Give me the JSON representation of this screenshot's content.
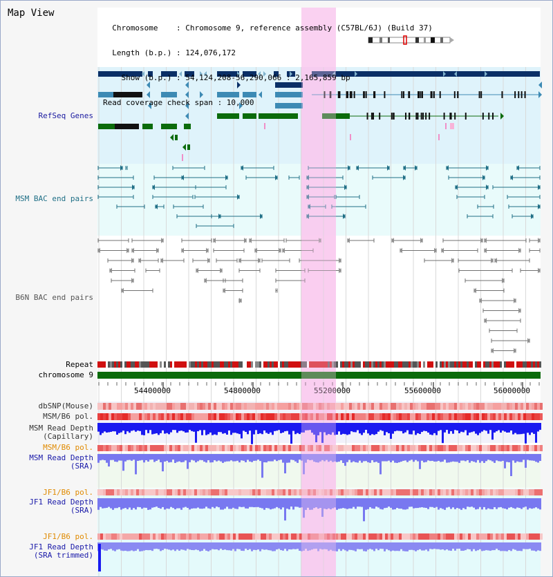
{
  "view": {
    "title": "Map View",
    "info_lines": [
      "  Chromosome    : Chromosome 9, reference assembly (C57BL/6J) (Build 37)",
      "  Length (b.p.) : 124,076,172",
      "    Show (b.p.) : 54,124,208-56,290,066 : 2,165,859 bp",
      "Read coverage check span : 10,000"
    ]
  },
  "colors": {
    "gene_dark": "#0a2f66",
    "gene_mid": "#3d8ab4",
    "gene_green": "#0b6b0b",
    "bac_msm": "#1f6f86",
    "bac_b6n": "#707070",
    "highlight": "#f9c9ef",
    "chrom_bar": "#0b6b0b",
    "label_refseq": "#1a1aa0",
    "label_msm_bac": "#1f6f86",
    "label_b6n": "#555555",
    "label_orange": "#e08a00",
    "label_blue": "#1818a8",
    "depth_blue": "#1a1af0",
    "depth_light": "#7878f0"
  },
  "tracks": {
    "refseq": "RefSeq Genes",
    "msm_bac": "MSM BAC end pairs",
    "b6n_bac": "B6N BAC end pairs",
    "repeat": "Repeat",
    "chromosome": "chromosome 9",
    "dbsnp": "dbSNP(Mouse)",
    "msm_b6_pol_1": "MSM/B6 pol.",
    "msm_depth_cap": "MSM Read Depth\n(Capillary)",
    "msm_b6_pol_2": "MSM/B6 pol.",
    "msm_depth_sra": "MSM Read Depth\n(SRA)",
    "jf1_pol_1": "JF1/B6 pol.",
    "jf1_depth_sra": "JF1 Read Depth\n(SRA)",
    "jf1_pol_2": "JF1/B6 pol.",
    "jf1_depth_trim": "JF1 Read Depth\n(SRA trimmed)"
  },
  "axis": {
    "ticks": [
      "54400000",
      "54800000",
      "55200000",
      "55600000",
      "56000000"
    ]
  }
}
